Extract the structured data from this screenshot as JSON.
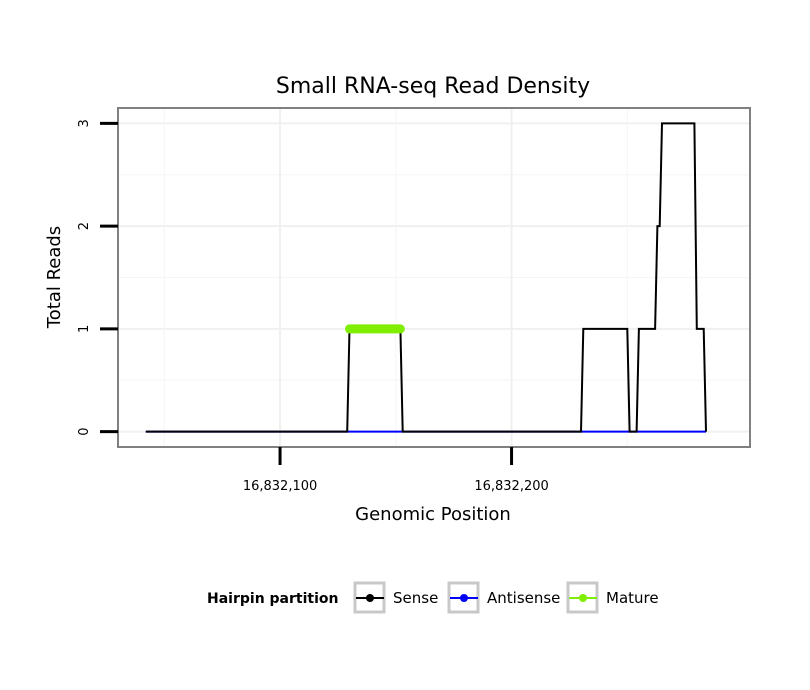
{
  "chart_data": {
    "type": "line",
    "title": "Small RNA-seq Read Density",
    "xlabel": "Genomic Position",
    "ylabel": "Total Reads",
    "xlim": [
      16832030,
      16832303
    ],
    "ylim": [
      -0.15,
      3.15
    ],
    "x_ticks": [
      {
        "value": 16832100,
        "label": "16,832,100"
      },
      {
        "value": 16832200,
        "label": "16,832,200"
      }
    ],
    "y_ticks": [
      {
        "value": 0,
        "label": "0"
      },
      {
        "value": 1,
        "label": "1"
      },
      {
        "value": 2,
        "label": "2"
      },
      {
        "value": 3,
        "label": "3"
      }
    ],
    "grid": true,
    "legend_title": "Hairpin partition",
    "legend_position": "bottom",
    "series": [
      {
        "name": "Sense",
        "color": "#000000",
        "x": [
          16832042,
          16832129,
          16832130,
          16832152,
          16832153,
          16832230,
          16832231,
          16832250,
          16832251,
          16832254,
          16832255,
          16832262,
          16832263,
          16832264,
          16832265,
          16832279,
          16832280,
          16832283,
          16832284
        ],
        "y": [
          0,
          0,
          1,
          1,
          0,
          0,
          1,
          1,
          0,
          0,
          1,
          1,
          2,
          2,
          3,
          3,
          1,
          1,
          0
        ]
      },
      {
        "name": "Antisense",
        "color": "#0000ff",
        "x": [
          16832042,
          16832284
        ],
        "y": [
          0,
          0
        ]
      },
      {
        "name": "Mature",
        "color": "#80ee00",
        "x": [
          16832130,
          16832152
        ],
        "y": [
          1,
          1
        ]
      }
    ]
  }
}
